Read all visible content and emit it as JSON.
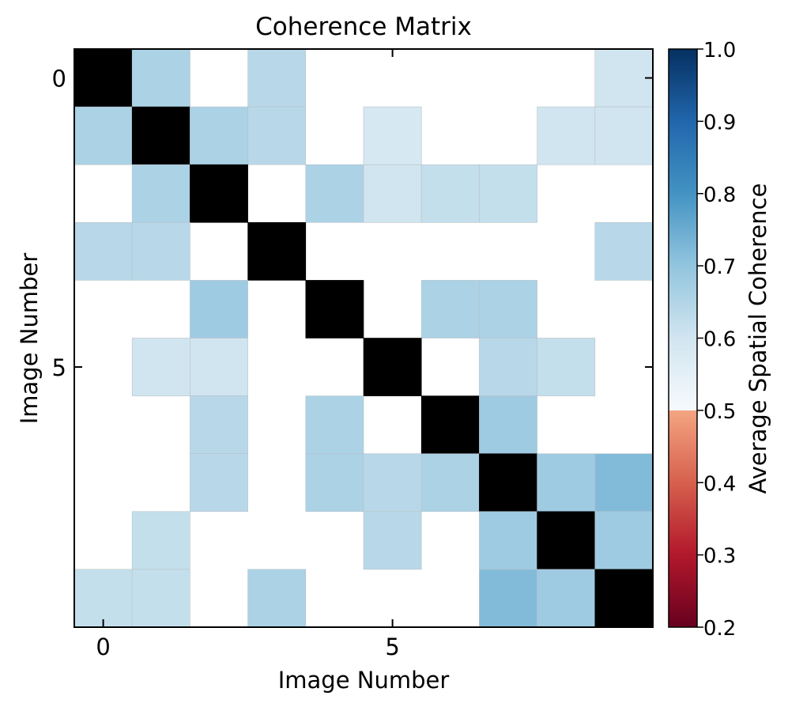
{
  "chart_data": {
    "type": "heatmap",
    "title": "Coherence Matrix",
    "xlabel": "Image Number",
    "ylabel": "Image Number",
    "x_ticks": [
      0,
      5
    ],
    "y_ticks": [
      0,
      5
    ],
    "size": 10,
    "diagonal_color": "#000000",
    "masked_color": "#ffffff",
    "colormap": "RdBu",
    "vmin": 0.2,
    "vmax": 1.0,
    "colorbar": {
      "label": "Average Spatial Coherence",
      "ticks": [
        "1.0",
        "0.9",
        "0.8",
        "0.7",
        "0.6",
        "0.5",
        "0.4",
        "0.3",
        "0.2"
      ],
      "position": "right"
    },
    "values": [
      [
        null,
        0.78,
        null,
        0.77,
        null,
        null,
        null,
        null,
        null,
        0.75
      ],
      [
        0.78,
        null,
        0.78,
        0.77,
        null,
        0.74,
        null,
        null,
        0.75,
        0.75
      ],
      [
        null,
        0.78,
        null,
        null,
        0.78,
        0.75,
        0.76,
        0.76,
        null,
        null
      ],
      [
        0.77,
        0.77,
        null,
        null,
        null,
        null,
        null,
        null,
        null,
        0.77
      ],
      [
        null,
        null,
        0.79,
        null,
        null,
        null,
        0.78,
        0.78,
        null,
        null
      ],
      [
        null,
        0.75,
        0.75,
        null,
        null,
        null,
        null,
        0.77,
        0.76,
        null
      ],
      [
        null,
        null,
        0.77,
        null,
        0.78,
        null,
        null,
        0.79,
        null,
        null
      ],
      [
        null,
        null,
        0.77,
        null,
        0.78,
        0.77,
        0.78,
        null,
        0.79,
        0.81
      ],
      [
        null,
        0.76,
        null,
        null,
        null,
        0.77,
        null,
        0.79,
        null,
        0.79
      ],
      [
        0.76,
        0.76,
        null,
        0.78,
        null,
        null,
        null,
        0.81,
        0.79,
        null
      ]
    ]
  }
}
